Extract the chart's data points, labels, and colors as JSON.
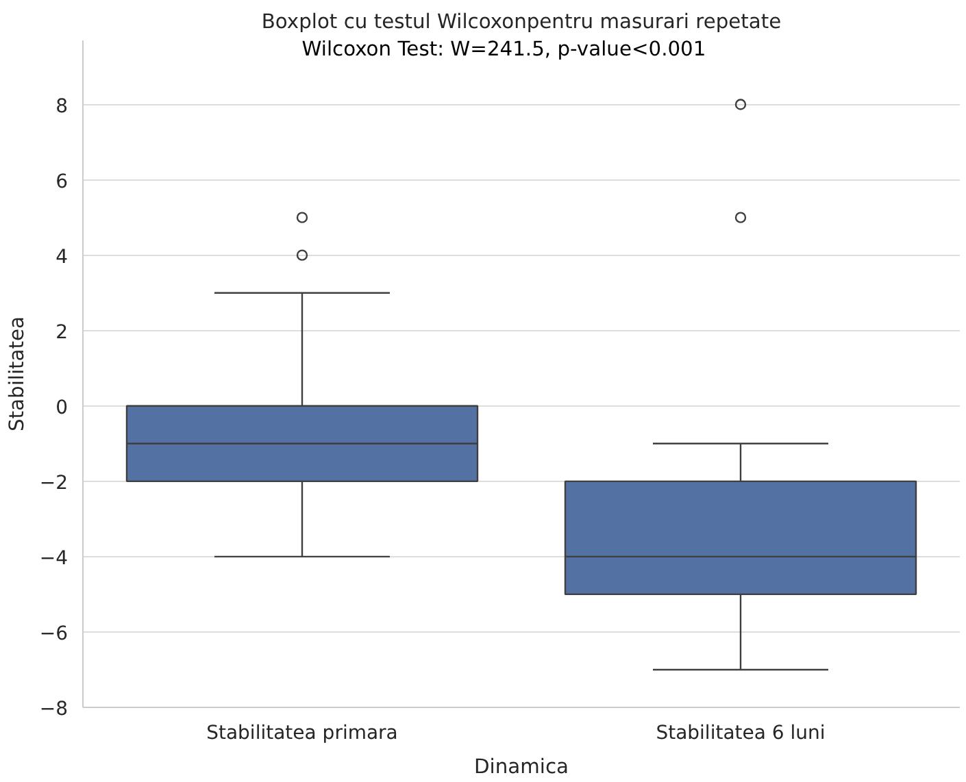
{
  "chart_data": {
    "type": "box",
    "title": "Boxplot cu testul Wilcoxonpentru masurari repetate",
    "xlabel": "Dinamica",
    "ylabel": "Stabilitatea",
    "categories": [
      "Stabilitatea primara",
      "Stabilitatea 6 luni"
    ],
    "series": [
      {
        "color": "#5471a4",
        "boxes": [
          {
            "low": -4,
            "q1": -2,
            "median": -1,
            "q3": 0,
            "high": 3,
            "outliers": [
              4,
              5
            ]
          },
          {
            "low": -7,
            "q1": -5,
            "median": -4,
            "q3": -2,
            "high": -1,
            "outliers": [
              5,
              8
            ]
          }
        ]
      }
    ],
    "ylim": [
      -8,
      9.7
    ],
    "yticks": [
      -8,
      -6,
      -4,
      -2,
      0,
      2,
      4,
      6,
      8
    ],
    "grid": "y",
    "annotations": [
      "Wilcoxon Test: W=241.5, p-value<0.001"
    ]
  }
}
